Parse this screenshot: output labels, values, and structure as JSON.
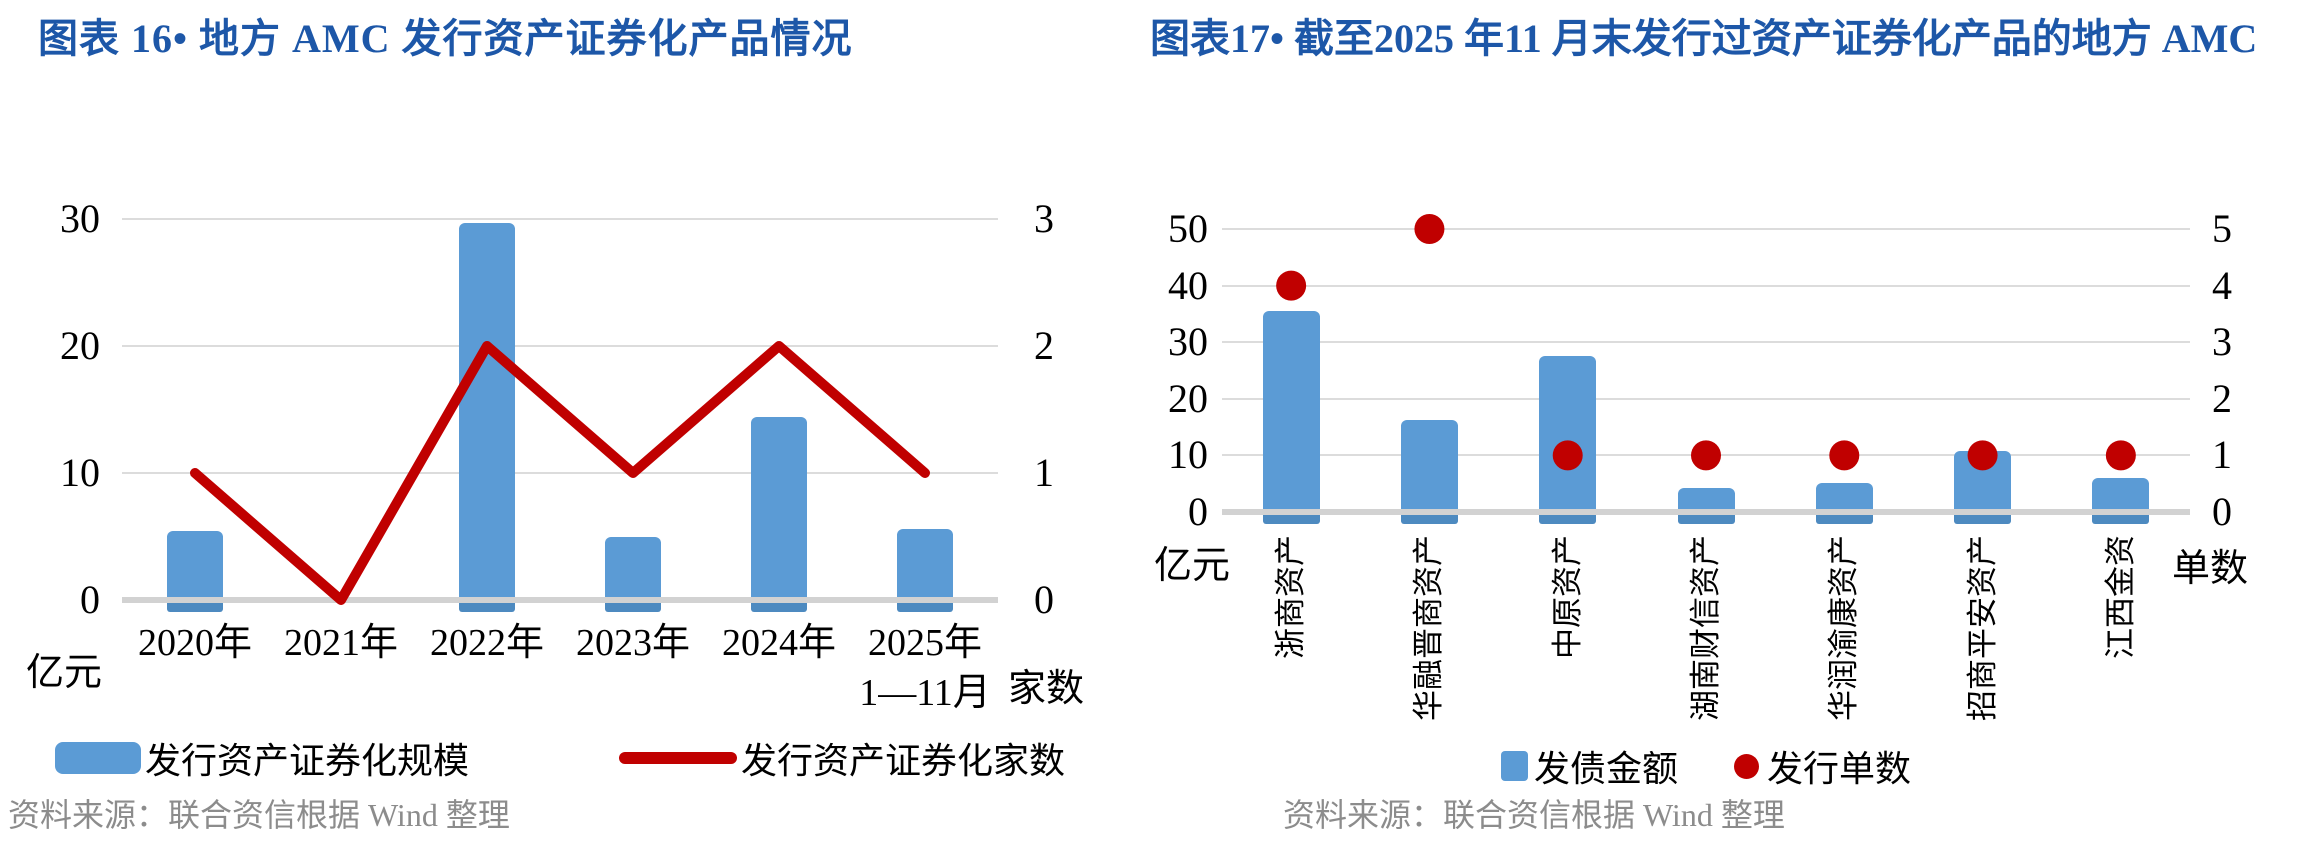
{
  "colors": {
    "title_blue": "#1D57A8",
    "bar_blue": "#5B9BD5",
    "bar_base_blue": "#4D8AC0",
    "line_red": "#C00000",
    "grid_gray": "#DCDCDC",
    "axis_zero_gray": "#D2D2D2",
    "source_gray": "#8C8C8C"
  },
  "chart_data": [
    {
      "type": "bar+line",
      "title": "图表 16•  地方 AMC 发行资产证券化产品情况",
      "categories": [
        "2020年",
        "2021年",
        "2022年",
        "2023年",
        "2024年",
        "2025年\n1—11月"
      ],
      "series": [
        {
          "name": "发行资产证券化规模",
          "type": "bar",
          "axis": "left",
          "values": [
            5.4,
            0,
            29.7,
            5.0,
            14.4,
            5.6
          ]
        },
        {
          "name": "发行资产证券化家数",
          "type": "line",
          "axis": "right",
          "values": [
            1,
            0,
            2,
            1,
            2,
            1
          ]
        }
      ],
      "left_axis": {
        "label": "亿元",
        "ticks": [
          0,
          10,
          20,
          30
        ],
        "range": [
          0,
          30
        ]
      },
      "right_axis": {
        "label": "家数",
        "ticks": [
          0,
          1,
          2,
          3
        ],
        "range": [
          0,
          3
        ]
      },
      "grid": true,
      "legend_position": "bottom",
      "source": "资料来源：联合资信根据 Wind 整理"
    },
    {
      "type": "bar+scatter",
      "title": "图表17•  截至2025 年11 月末发行过资产证券化产品的地方 AMC",
      "categories": [
        "浙商资产",
        "华融晋商资产",
        "中原资产",
        "湖南财信资产",
        "华润渝康资产",
        "招商平安资产",
        "江西金资"
      ],
      "series": [
        {
          "name": "发债金额",
          "type": "bar",
          "axis": "left",
          "values": [
            35.5,
            16.3,
            27.5,
            4.2,
            5.2,
            10.7,
            6.0
          ]
        },
        {
          "name": "发行单数",
          "type": "scatter",
          "axis": "right",
          "values": [
            4,
            5,
            1,
            1,
            1,
            1,
            1
          ]
        }
      ],
      "left_axis": {
        "label": "亿元",
        "ticks": [
          0,
          10,
          20,
          30,
          40,
          50
        ],
        "range": [
          0,
          50
        ]
      },
      "right_axis": {
        "label": "单数",
        "ticks": [
          0,
          1,
          2,
          3,
          4,
          5
        ],
        "range": [
          0,
          5
        ]
      },
      "grid": true,
      "legend_position": "bottom",
      "source": "资料来源：联合资信根据 Wind 整理"
    }
  ]
}
